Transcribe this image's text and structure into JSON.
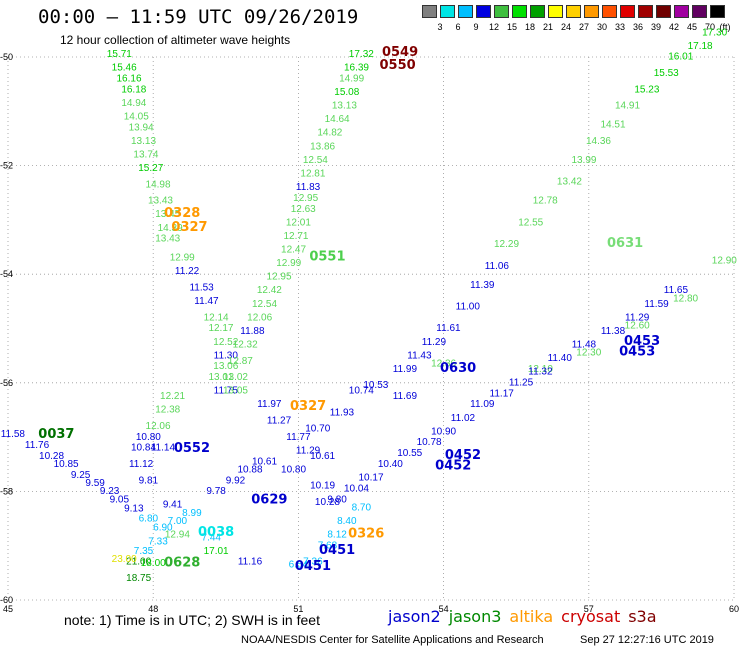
{
  "header": {
    "title": "00:00 – 11:59 UTC 09/26/2019",
    "subtitle": "12 hour collection of altimeter wave heights"
  },
  "colorbar": {
    "unit": "(ft)",
    "colors": [
      "#808080",
      "#00e5e5",
      "#00bfff",
      "#0000e0",
      "#3fbf3f",
      "#00e000",
      "#00a000",
      "#ffff00",
      "#ffd000",
      "#ff9900",
      "#ff5000",
      "#e00000",
      "#a00000",
      "#700000",
      "#a000a0",
      "#600060",
      "#000000"
    ],
    "labels": [
      "3",
      "6",
      "9",
      "12",
      "15",
      "18",
      "21",
      "24",
      "27",
      "30",
      "33",
      "36",
      "39",
      "42",
      "45",
      "70"
    ]
  },
  "map": {
    "lat_range": [
      -60,
      -50
    ],
    "lon_range": [
      45,
      60
    ],
    "lat_ticks": [
      "-50",
      "-52",
      "-54",
      "-56",
      "-58",
      "-60"
    ],
    "lon_ticks": [
      "45",
      "48",
      "51",
      "54",
      "57",
      "60"
    ],
    "height_color_scale": [
      {
        "max": 6,
        "color": "#00e5e5"
      },
      {
        "max": 9,
        "color": "#00bfff"
      },
      {
        "max": 12,
        "color": "#0000d8"
      },
      {
        "max": 15,
        "color": "#5ad65a"
      },
      {
        "max": 18,
        "color": "#00cc00"
      },
      {
        "max": 21,
        "color": "#008800"
      },
      {
        "max": 24,
        "color": "#e0e000"
      }
    ]
  },
  "tracks": [
    {
      "color": "#006400",
      "label_color": "#007000",
      "pass": "0037",
      "labels": [
        {
          "text": "0037",
          "lon": 46.0,
          "lat": -57.02
        }
      ],
      "points": [
        [
          45.1,
          -57.0,
          11.58
        ],
        [
          45.6,
          -57.2,
          11.76
        ],
        [
          45.9,
          -57.4,
          10.28
        ],
        [
          46.2,
          -57.55,
          10.85
        ],
        [
          46.5,
          -57.75,
          9.25
        ],
        [
          46.8,
          -57.9,
          9.59
        ],
        [
          47.1,
          -58.05,
          9.23
        ],
        [
          47.3,
          -58.2,
          9.05
        ],
        [
          47.6,
          -58.37,
          9.13
        ]
      ]
    },
    {
      "color": "#00e5e5",
      "pass": "0038",
      "labels": [
        {
          "text": "0038",
          "lon": 49.3,
          "lat": -58.82
        }
      ],
      "points": [
        [
          47.9,
          -58.55,
          6.8
        ],
        [
          48.2,
          -58.72,
          6.9
        ],
        [
          48.5,
          -58.6,
          7.0
        ],
        [
          48.1,
          -58.98,
          7.33
        ],
        [
          47.8,
          -59.15,
          7.35
        ]
      ]
    },
    {
      "color": "#2faf2f",
      "pass": "0628",
      "labels": [
        {
          "text": "0628",
          "lon": 48.6,
          "lat": -59.38
        }
      ],
      "points": [
        [
          48.5,
          -58.85,
          12.94
        ],
        [
          47.7,
          -59.35,
          21.0
        ],
        [
          48.0,
          -59.37,
          18.0
        ],
        [
          47.7,
          -59.65,
          18.75
        ]
      ]
    },
    {
      "color": "#0000cc",
      "pass": "0629",
      "labels": [
        {
          "text": "0629",
          "lon": 50.4,
          "lat": -58.22
        }
      ],
      "points": [
        [
          47.9,
          -57.05,
          10.8
        ],
        [
          47.8,
          -57.25,
          10.84
        ],
        [
          47.75,
          -57.55,
          11.12
        ],
        [
          47.9,
          -57.85,
          9.81
        ],
        [
          48.4,
          -58.3,
          9.41
        ],
        [
          48.8,
          -58.45,
          8.99
        ],
        [
          49.3,
          -58.05,
          9.78
        ],
        [
          49.7,
          -57.85,
          9.92
        ],
        [
          50.0,
          -57.65,
          10.88
        ],
        [
          50.3,
          -57.5,
          10.61
        ]
      ]
    },
    {
      "color": "#77dd77",
      "pass": "0629b",
      "labels": [],
      "points": [
        [
          48.4,
          -56.3,
          12.21
        ],
        [
          48.3,
          -56.55,
          12.38
        ],
        [
          48.1,
          -56.85,
          12.06
        ]
      ]
    },
    {
      "color": "#0000cc",
      "pass": "0552",
      "labels": [
        {
          "text": "0552",
          "lon": 48.8,
          "lat": -57.27
        }
      ],
      "points": [
        [
          48.2,
          -57.25,
          11.14
        ]
      ]
    },
    {
      "color": "#00c0c0",
      "pass": "0628b",
      "labels": [],
      "points": [
        [
          49.2,
          -58.9,
          7.44
        ],
        [
          49.3,
          -59.15,
          17.01
        ],
        [
          50.0,
          -59.35,
          11.16
        ]
      ]
    },
    {
      "color": "#800000",
      "pass": "0549",
      "labels": [
        {
          "text": "0549",
          "lon": 53.1,
          "lat": -49.98
        },
        {
          "text": "0550",
          "lon": 53.05,
          "lat": -50.22
        }
      ],
      "points": []
    },
    {
      "color": "#4ccf4c",
      "pass": "0550",
      "labels": [],
      "points": [
        [
          47.3,
          -50.0,
          15.71
        ],
        [
          47.4,
          -50.25,
          15.46
        ],
        [
          47.5,
          -50.45,
          16.16
        ],
        [
          47.6,
          -50.65,
          16.18
        ],
        [
          47.6,
          -50.9,
          14.94
        ],
        [
          47.65,
          -51.15,
          14.05
        ],
        [
          47.75,
          -51.35,
          13.94
        ],
        [
          47.8,
          -51.6,
          13.13
        ],
        [
          47.85,
          -51.85,
          13.74
        ],
        [
          47.95,
          -52.1,
          15.27
        ],
        [
          48.1,
          -52.4,
          14.98
        ],
        [
          48.15,
          -52.7,
          13.43
        ],
        [
          48.3,
          -52.95,
          13.45
        ],
        [
          48.35,
          -53.2,
          14.39
        ],
        [
          48.3,
          -53.4,
          13.43
        ],
        [
          48.6,
          -53.75,
          12.99
        ],
        [
          48.7,
          -54.0,
          11.22
        ],
        [
          49.0,
          -54.3,
          11.53
        ],
        [
          49.1,
          -54.55,
          11.47
        ],
        [
          49.3,
          -54.85,
          12.14
        ],
        [
          49.4,
          -55.05,
          12.17
        ],
        [
          49.5,
          -55.3,
          12.52
        ],
        [
          49.5,
          -55.55,
          11.3
        ],
        [
          49.5,
          -55.75,
          13.06
        ],
        [
          49.4,
          -55.95,
          13.01
        ],
        [
          49.5,
          -56.2,
          11.75
        ]
      ]
    },
    {
      "color": "#4ccf4c",
      "pass": "0551",
      "labels": [
        {
          "text": "0551",
          "lon": 51.6,
          "lat": -53.75
        }
      ],
      "points": [
        [
          52.3,
          -50.0,
          17.32
        ],
        [
          52.2,
          -50.25,
          16.39
        ],
        [
          52.1,
          -50.45,
          14.99
        ],
        [
          52.0,
          -50.7,
          15.08
        ],
        [
          51.95,
          -50.95,
          13.13
        ],
        [
          51.8,
          -51.2,
          14.64
        ],
        [
          51.65,
          -51.45,
          14.82
        ],
        [
          51.5,
          -51.7,
          13.86
        ],
        [
          51.35,
          -51.95,
          12.54
        ],
        [
          51.3,
          -52.2,
          12.81
        ],
        [
          51.2,
          -52.45,
          11.83
        ],
        [
          51.15,
          -52.65,
          12.95
        ],
        [
          51.1,
          -52.85,
          12.63
        ],
        [
          51.0,
          -53.1,
          12.01
        ],
        [
          50.95,
          -53.35,
          12.71
        ],
        [
          50.9,
          -53.6,
          12.47
        ],
        [
          50.8,
          -53.85,
          12.99
        ],
        [
          50.6,
          -54.1,
          12.95
        ],
        [
          50.4,
          -54.35,
          12.42
        ],
        [
          50.3,
          -54.6,
          12.54
        ],
        [
          50.2,
          -54.85,
          12.06
        ],
        [
          50.05,
          -55.1,
          11.88
        ],
        [
          49.9,
          -55.35,
          12.32
        ],
        [
          49.8,
          -55.65,
          12.87
        ],
        [
          49.7,
          -55.95,
          13.02
        ],
        [
          49.7,
          -56.2,
          13.05
        ]
      ]
    },
    {
      "color": "#ff9900",
      "pass": "0328",
      "labels": [
        {
          "text": "0328",
          "lon": 48.6,
          "lat": -52.95
        },
        {
          "text": "0327",
          "lon": 48.75,
          "lat": -53.2
        },
        {
          "text": "0327",
          "lon": 51.2,
          "lat": -56.5
        },
        {
          "text": "0326",
          "lon": 52.4,
          "lat": -58.85
        }
      ],
      "points": [
        [
          47.4,
          -59.3,
          23.0
        ]
      ]
    },
    {
      "color": "#0000cc",
      "pass": "0630",
      "labels": [
        {
          "text": "0630",
          "lon": 54.3,
          "lat": -55.8
        }
      ],
      "points": [
        [
          50.4,
          -56.45,
          11.97
        ],
        [
          50.6,
          -56.75,
          11.27
        ],
        [
          51.0,
          -57.05,
          11.77
        ],
        [
          51.4,
          -56.9,
          10.7
        ],
        [
          51.2,
          -57.3,
          11.29
        ],
        [
          51.5,
          -57.4,
          10.61
        ],
        [
          50.9,
          -57.65,
          10.8
        ],
        [
          51.5,
          -57.95,
          10.19
        ],
        [
          51.6,
          -58.25,
          10.28
        ],
        [
          51.9,
          -56.6,
          11.93
        ],
        [
          52.3,
          -56.2,
          10.74
        ],
        [
          52.6,
          -56.1,
          10.53
        ],
        [
          53.2,
          -56.3,
          11.69
        ],
        [
          53.2,
          -55.8,
          11.99
        ],
        [
          53.5,
          -55.55,
          11.43
        ],
        [
          53.8,
          -55.3,
          11.29
        ],
        [
          54.1,
          -55.05,
          11.61
        ],
        [
          54.5,
          -54.65,
          11.0
        ],
        [
          54.8,
          -54.25,
          11.39
        ],
        [
          55.1,
          -53.9,
          11.06
        ]
      ]
    },
    {
      "color": "#77dd77",
      "pass": "0631",
      "labels": [
        {
          "text": "0631",
          "lon": 57.75,
          "lat": -53.5
        }
      ],
      "points": [
        [
          55.3,
          -53.5,
          12.29
        ],
        [
          55.8,
          -53.1,
          12.55
        ],
        [
          56.1,
          -52.7,
          12.78
        ],
        [
          56.6,
          -52.35,
          13.42
        ],
        [
          56.9,
          -51.95,
          13.99
        ],
        [
          57.2,
          -51.6,
          14.36
        ],
        [
          57.5,
          -51.3,
          14.51
        ],
        [
          57.8,
          -50.95,
          14.91
        ],
        [
          58.2,
          -50.65,
          15.23
        ],
        [
          58.6,
          -50.35,
          15.53
        ],
        [
          58.9,
          -50.05,
          16.01
        ],
        [
          59.3,
          -49.85,
          17.18
        ],
        [
          59.6,
          -49.6,
          17.3
        ]
      ]
    },
    {
      "color": "#77dd77",
      "pass": "0453b",
      "labels": [],
      "points": [
        [
          54.0,
          -55.7,
          12.36
        ],
        [
          56.0,
          -55.8,
          12.1
        ],
        [
          57.0,
          -55.5,
          12.3
        ],
        [
          58.0,
          -55.0,
          12.6
        ],
        [
          59.0,
          -54.5,
          12.8
        ],
        [
          59.8,
          -53.8,
          12.9
        ]
      ]
    },
    {
      "color": "#0000cc",
      "pass": "0452",
      "labels": [
        {
          "text": "0452",
          "lon": 54.4,
          "lat": -57.4
        },
        {
          "text": "0452",
          "lon": 54.2,
          "lat": -57.6
        },
        {
          "text": "0453",
          "lon": 58.1,
          "lat": -55.3
        },
        {
          "text": "0453",
          "lon": 58.0,
          "lat": -55.5
        },
        {
          "text": "0451",
          "lon": 51.8,
          "lat": -59.15
        },
        {
          "text": "0451",
          "lon": 51.3,
          "lat": -59.45
        }
      ],
      "points": [
        [
          51.8,
          -58.2,
          9.8
        ],
        [
          52.2,
          -58.0,
          10.04
        ],
        [
          52.5,
          -57.8,
          10.17
        ],
        [
          52.9,
          -57.55,
          10.4
        ],
        [
          53.3,
          -57.35,
          10.55
        ],
        [
          53.7,
          -57.15,
          10.78
        ],
        [
          54.0,
          -56.95,
          10.9
        ],
        [
          54.4,
          -56.7,
          11.02
        ],
        [
          54.8,
          -56.45,
          11.09
        ],
        [
          55.2,
          -56.25,
          11.17
        ],
        [
          55.6,
          -56.05,
          11.25
        ],
        [
          56.0,
          -55.85,
          11.32
        ],
        [
          56.4,
          -55.6,
          11.4
        ],
        [
          56.9,
          -55.35,
          11.48
        ],
        [
          57.5,
          -55.1,
          11.38
        ],
        [
          58.0,
          -54.85,
          11.29
        ],
        [
          58.4,
          -54.6,
          11.59
        ],
        [
          58.8,
          -54.35,
          11.65
        ]
      ]
    },
    {
      "color": "#00c0c0",
      "pass": "0451",
      "labels": [],
      "points": [
        [
          51.0,
          -59.4,
          6.54
        ],
        [
          51.3,
          -59.35,
          7.36
        ],
        [
          51.6,
          -59.05,
          7.68
        ],
        [
          51.8,
          -58.85,
          8.12
        ],
        [
          52.0,
          -58.6,
          8.4
        ],
        [
          52.3,
          -58.35,
          8.7
        ]
      ]
    }
  ],
  "note": "note: 1) Time is in UTC; 2) SWH is in feet",
  "missions": [
    {
      "name": "jason2",
      "color": "#0000cc"
    },
    {
      "name": "jason3",
      "color": "#008800"
    },
    {
      "name": "altika",
      "color": "#ff9900"
    },
    {
      "name": "cryosat",
      "color": "#cc0000"
    },
    {
      "name": "s3a",
      "color": "#800000"
    }
  ],
  "footer": {
    "credit": "NOAA/NESDIS Center for Satellite Applications and Research",
    "timestamp": "Sep 27 12:27:16 UTC 2019"
  }
}
